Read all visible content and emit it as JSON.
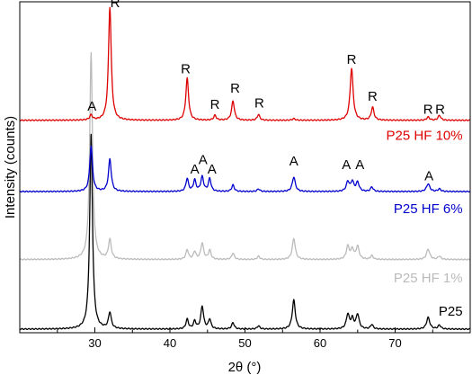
{
  "chart_data": {
    "type": "line",
    "xlabel": "2θ (°)",
    "ylabel": "Intensity (counts)",
    "xlim": [
      20,
      80
    ],
    "x_ticks": [
      30,
      40,
      50,
      60,
      70
    ],
    "grid": false,
    "legend": "none",
    "y_ticks_labeled": false,
    "series": [
      {
        "name": "P25",
        "color": "#000000",
        "baseline": 0.0,
        "peaks": [
          {
            "x": 29.5,
            "h": 0.6,
            "w": 0.22
          },
          {
            "x": 32.0,
            "h": 0.05,
            "w": 0.22
          },
          {
            "x": 42.3,
            "h": 0.03,
            "w": 0.2
          },
          {
            "x": 43.3,
            "h": 0.024,
            "w": 0.2
          },
          {
            "x": 44.3,
            "h": 0.07,
            "w": 0.22
          },
          {
            "x": 45.3,
            "h": 0.03,
            "w": 0.2
          },
          {
            "x": 48.4,
            "h": 0.02,
            "w": 0.2
          },
          {
            "x": 51.8,
            "h": 0.01,
            "w": 0.2
          },
          {
            "x": 56.5,
            "h": 0.09,
            "w": 0.24
          },
          {
            "x": 63.7,
            "h": 0.045,
            "w": 0.24
          },
          {
            "x": 64.3,
            "h": 0.03,
            "w": 0.22
          },
          {
            "x": 65.0,
            "h": 0.045,
            "w": 0.24
          },
          {
            "x": 66.9,
            "h": 0.014,
            "w": 0.2
          },
          {
            "x": 74.4,
            "h": 0.036,
            "w": 0.26
          },
          {
            "x": 75.9,
            "h": 0.012,
            "w": 0.22
          }
        ]
      },
      {
        "name": "P25 HF 1%",
        "color": "#bbbbbb",
        "baseline": 0.215,
        "peaks": [
          {
            "x": 29.5,
            "h": 0.64,
            "w": 0.22
          },
          {
            "x": 32.0,
            "h": 0.06,
            "w": 0.22
          },
          {
            "x": 42.3,
            "h": 0.03,
            "w": 0.2
          },
          {
            "x": 43.3,
            "h": 0.024,
            "w": 0.2
          },
          {
            "x": 44.3,
            "h": 0.05,
            "w": 0.22
          },
          {
            "x": 45.3,
            "h": 0.028,
            "w": 0.2
          },
          {
            "x": 48.4,
            "h": 0.02,
            "w": 0.2
          },
          {
            "x": 51.8,
            "h": 0.01,
            "w": 0.2
          },
          {
            "x": 56.5,
            "h": 0.065,
            "w": 0.24
          },
          {
            "x": 63.7,
            "h": 0.04,
            "w": 0.24
          },
          {
            "x": 64.3,
            "h": 0.03,
            "w": 0.22
          },
          {
            "x": 65.0,
            "h": 0.04,
            "w": 0.24
          },
          {
            "x": 66.9,
            "h": 0.012,
            "w": 0.2
          },
          {
            "x": 74.4,
            "h": 0.032,
            "w": 0.26
          },
          {
            "x": 75.9,
            "h": 0.01,
            "w": 0.22
          }
        ]
      },
      {
        "name": "P25 HF 6%",
        "color": "#0000cc",
        "baseline": 0.425,
        "peaks": [
          {
            "x": 29.5,
            "h": 0.14,
            "w": 0.22
          },
          {
            "x": 32.0,
            "h": 0.1,
            "w": 0.22
          },
          {
            "x": 42.3,
            "h": 0.04,
            "w": 0.2
          },
          {
            "x": 43.3,
            "h": 0.035,
            "w": 0.2
          },
          {
            "x": 44.3,
            "h": 0.045,
            "w": 0.22
          },
          {
            "x": 45.3,
            "h": 0.04,
            "w": 0.2
          },
          {
            "x": 48.4,
            "h": 0.02,
            "w": 0.2
          },
          {
            "x": 51.8,
            "h": 0.008,
            "w": 0.2
          },
          {
            "x": 56.5,
            "h": 0.045,
            "w": 0.24
          },
          {
            "x": 63.7,
            "h": 0.03,
            "w": 0.24
          },
          {
            "x": 64.3,
            "h": 0.03,
            "w": 0.22
          },
          {
            "x": 65.0,
            "h": 0.028,
            "w": 0.24
          },
          {
            "x": 66.9,
            "h": 0.014,
            "w": 0.2
          },
          {
            "x": 74.4,
            "h": 0.024,
            "w": 0.26
          },
          {
            "x": 75.9,
            "h": 0.008,
            "w": 0.22
          }
        ]
      },
      {
        "name": "P25 HF 10%",
        "color": "#dd0000",
        "baseline": 0.645,
        "peaks": [
          {
            "x": 29.5,
            "h": 0.015,
            "w": 0.22
          },
          {
            "x": 32.0,
            "h": 0.35,
            "w": 0.22
          },
          {
            "x": 42.3,
            "h": 0.13,
            "w": 0.22
          },
          {
            "x": 46.0,
            "h": 0.015,
            "w": 0.2
          },
          {
            "x": 48.4,
            "h": 0.06,
            "w": 0.22
          },
          {
            "x": 51.8,
            "h": 0.018,
            "w": 0.2
          },
          {
            "x": 56.5,
            "h": 0.005,
            "w": 0.22
          },
          {
            "x": 64.2,
            "h": 0.16,
            "w": 0.24
          },
          {
            "x": 67.0,
            "h": 0.04,
            "w": 0.22
          },
          {
            "x": 74.4,
            "h": 0.01,
            "w": 0.22
          },
          {
            "x": 75.9,
            "h": 0.015,
            "w": 0.22
          }
        ]
      }
    ],
    "annotations": [
      {
        "text": "A",
        "x": 29.6,
        "y": 0.675
      },
      {
        "text": "R",
        "x": 32.7,
        "y": 0.995
      },
      {
        "text": "R",
        "x": 42.1,
        "y": 0.79
      },
      {
        "text": "R",
        "x": 46.0,
        "y": 0.68
      },
      {
        "text": "R",
        "x": 48.7,
        "y": 0.73
      },
      {
        "text": "R",
        "x": 51.9,
        "y": 0.685
      },
      {
        "text": "R",
        "x": 64.2,
        "y": 0.82
      },
      {
        "text": "R",
        "x": 67.0,
        "y": 0.705
      },
      {
        "text": "R",
        "x": 74.4,
        "y": 0.665
      },
      {
        "text": "R",
        "x": 76.0,
        "y": 0.665
      },
      {
        "text": "A",
        "x": 43.3,
        "y": 0.48
      },
      {
        "text": "A",
        "x": 44.4,
        "y": 0.51
      },
      {
        "text": "A",
        "x": 45.6,
        "y": 0.48
      },
      {
        "text": "A",
        "x": 56.5,
        "y": 0.505
      },
      {
        "text": "A",
        "x": 63.5,
        "y": 0.495
      },
      {
        "text": "A",
        "x": 65.3,
        "y": 0.495
      },
      {
        "text": "A",
        "x": 74.5,
        "y": 0.46
      }
    ],
    "series_labels": [
      {
        "text": "P25 HF 10%",
        "color": "#dd0000",
        "x": 79.0,
        "y": 0.585
      },
      {
        "text": "P25 HF 6%",
        "color": "#0000cc",
        "x": 79.0,
        "y": 0.358
      },
      {
        "text": "P25 HF 1%",
        "color": "#bbbbbb",
        "x": 79.0,
        "y": 0.145
      },
      {
        "text": "P25",
        "color": "#000000",
        "x": 79.0,
        "y": 0.042
      }
    ]
  }
}
